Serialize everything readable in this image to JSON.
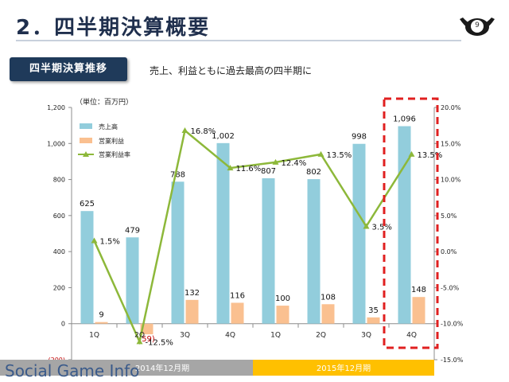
{
  "header": {
    "title": "2．四半期決算概要",
    "page_number": "9"
  },
  "section": {
    "tab_label": "四半期決算推移",
    "subtitle": "売上、利益ともに過去最高の四半期に"
  },
  "watermark": "Social Game Info",
  "colors": {
    "revenue": "#92cddc",
    "profit": "#fac090",
    "margin": "#8db83a",
    "highlight": "#e02020",
    "period_2014": "#a6a6a6",
    "period_2015": "#ffc000"
  },
  "chart_data": {
    "type": "bar",
    "unit_label": "（単位：百万円）",
    "categories": [
      "1Q",
      "2Q",
      "3Q",
      "4Q",
      "1Q",
      "2Q",
      "3Q",
      "4Q"
    ],
    "series": [
      {
        "name": "売上高",
        "kind": "bar",
        "values": [
          625,
          479,
          788,
          1002,
          807,
          802,
          998,
          1096
        ],
        "labels": [
          "625",
          "479",
          "788",
          "1,002",
          "807",
          "802",
          "998",
          "1,096"
        ]
      },
      {
        "name": "営業利益",
        "kind": "bar",
        "values": [
          9,
          -59,
          132,
          116,
          100,
          108,
          35,
          148
        ],
        "labels": [
          "9",
          "(59)",
          "132",
          "116",
          "100",
          "108",
          "35",
          "148"
        ]
      },
      {
        "name": "営業利益率",
        "kind": "line",
        "axis": "right",
        "values": [
          1.5,
          -12.5,
          16.8,
          11.6,
          12.4,
          13.5,
          3.5,
          13.5
        ],
        "labels": [
          "1.5%",
          "-12.5%",
          "16.8%",
          "11.6%",
          "12.4%",
          "13.5%",
          "3.5%",
          "13.5%"
        ]
      }
    ],
    "left_axis": {
      "range": [
        -200,
        1200
      ],
      "ticks": [
        -200,
        0,
        200,
        400,
        600,
        800,
        1000,
        1200
      ],
      "tick_labels": [
        "(200)",
        "0",
        "200",
        "400",
        "600",
        "800",
        "1,000",
        "1,200"
      ]
    },
    "right_axis": {
      "range": [
        -15,
        20
      ],
      "ticks": [
        -15,
        -10,
        -5,
        0,
        5,
        10,
        15,
        20
      ],
      "tick_labels": [
        "-15.0%",
        "-10.0%",
        "-5.0%",
        "0.0%",
        "5.0%",
        "10.0%",
        "15.0%",
        "20.0%"
      ]
    },
    "periods": [
      {
        "label": "2014年12月期",
        "quarters": [
          0,
          3
        ]
      },
      {
        "label": "2015年12月期",
        "quarters": [
          4,
          7
        ]
      }
    ],
    "highlight_category_index": 7,
    "legend_position": "top-left",
    "grid": false
  }
}
